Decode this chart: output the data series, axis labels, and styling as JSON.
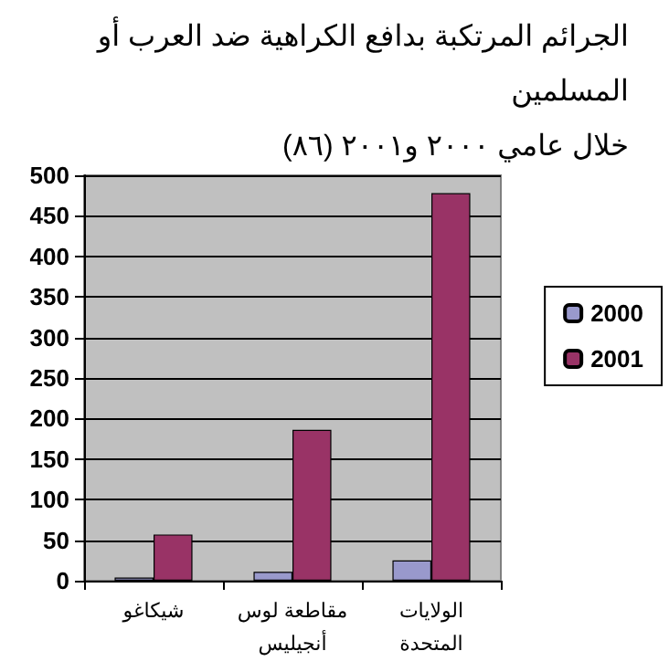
{
  "chart_data": {
    "type": "bar",
    "title": "الجرائم المرتكبة بدافع الكراهية ضد العرب أو المسلمين\nخلال عامي ٢٠٠٠ و٢٠٠١ (٨٦)",
    "categories": [
      "شيكاغو",
      "مقاطعة لوس\nأنجيليس",
      "الولايات\nالمتحدة"
    ],
    "series": [
      {
        "name": "2000",
        "color": "#9999cc",
        "values": [
          4,
          11,
          25
        ]
      },
      {
        "name": "2001",
        "color": "#993366",
        "values": [
          57,
          186,
          478
        ]
      }
    ],
    "ylim": [
      0,
      500
    ],
    "yticks": [
      0,
      50,
      100,
      150,
      200,
      250,
      300,
      350,
      400,
      450,
      500
    ],
    "grid": "y",
    "legend": "right"
  }
}
